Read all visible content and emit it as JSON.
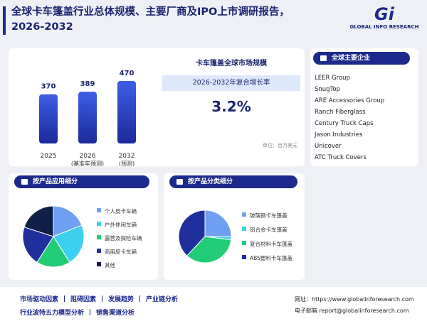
{
  "header": {
    "title": "全球卡车篷盖行业总体规模、主要厂商及IPO上市调研报告，",
    "title_line2": "2026-2032",
    "logo_mark": "Gi",
    "logo_text": "GLOBAL INFO RESEARCH"
  },
  "chart_data": [
    {
      "type": "bar",
      "title": "卡车篷盖全球市场规模",
      "categories": [
        "2025",
        "2026",
        "2032"
      ],
      "category_notes": [
        null,
        "(基准年预测)",
        "(预测)"
      ],
      "values": [
        370,
        389,
        470
      ],
      "color": "#2a45c8"
    },
    {
      "type": "pie",
      "title": "按产品应用细分",
      "categories": [
        "个人皮卡车辆",
        "户外休闲车辆",
        "露营及探险车辆",
        "商用皮卡车辆",
        "其他"
      ],
      "values": [
        19,
        22,
        18,
        21,
        20
      ],
      "colors": [
        "#6fa0f2",
        "#3ccff0",
        "#22cc77",
        "#1f2f9c",
        "#0f1f48"
      ]
    },
    {
      "type": "pie",
      "title": "按产品分类细分",
      "categories": [
        "玻璃钢卡车篷盖",
        "铝合金卡车篷盖",
        "复合材料卡车篷盖",
        "ABS塑料卡车篷盖"
      ],
      "values": [
        25,
        2,
        35,
        38
      ],
      "colors": [
        "#6fa0f2",
        "#3ccff0",
        "#22cc77",
        "#1f2f9c"
      ]
    }
  ],
  "growth": {
    "label": "2026-2032年复合增长率",
    "value": "3.2%"
  },
  "unit": "单位：百万美元",
  "companies": {
    "title": "全球主要企业",
    "items": [
      "LEER Group",
      "SnugTop",
      "ARE Accessories Group",
      "Ranch Fiberglass",
      "Century Truck Caps",
      "Jason Industries",
      "Unicover",
      "ATC Truck Covers"
    ]
  },
  "footer": {
    "topics": [
      [
        "市场驱动因素",
        "阻碍因素",
        "发展趋势",
        "产业链分析"
      ],
      [
        "行业波特五力模型分析",
        "销售渠道分析"
      ]
    ],
    "website": "网址：https://www.globalinforesearch.com",
    "email": "电子邮箱 report@globalinforesearch.com"
  }
}
